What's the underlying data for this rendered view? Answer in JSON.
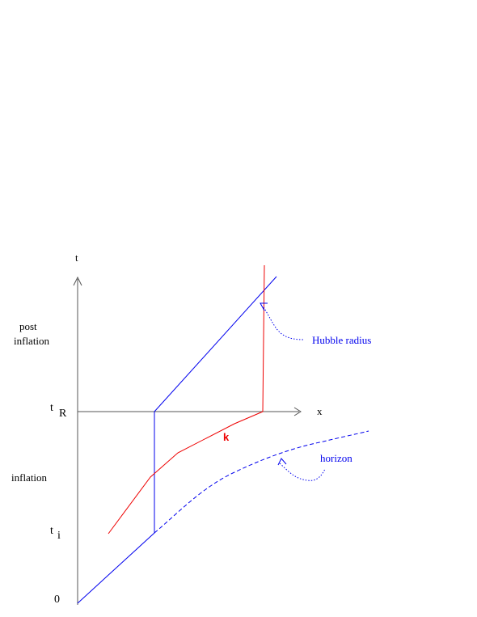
{
  "labels": {
    "t_axis": "t",
    "x_axis": "x",
    "post": "post",
    "post_inflation": "inflation",
    "inflation": "inflation",
    "t_letter_R": "t",
    "t_sub_R": "R",
    "t_letter_i": "t",
    "t_sub_i": "i",
    "origin": "0",
    "k": "k",
    "hubble_radius": "Hubble radius",
    "horizon": "horizon"
  },
  "colors": {
    "axis": "#555555",
    "blue": "#0000ee",
    "red": "#ee0000",
    "text": "#000000"
  }
}
